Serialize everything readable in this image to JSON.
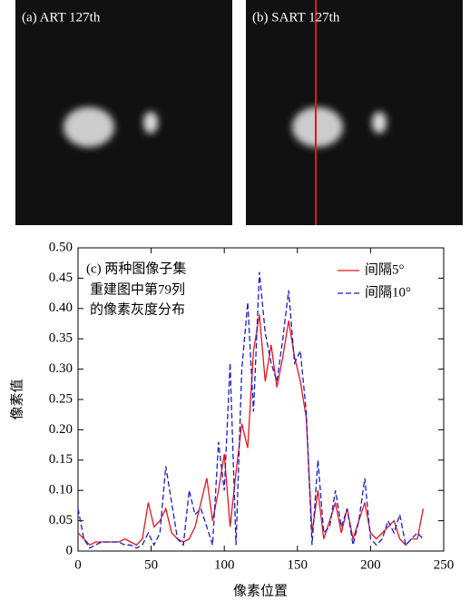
{
  "panels": [
    {
      "label": "(a) ART 127th"
    },
    {
      "label": "(b) SART 127th"
    }
  ],
  "chart_data": {
    "type": "line",
    "annotation": [
      "(c) 两种图像子集",
      "重建图中第79列",
      "的像素灰度分布"
    ],
    "xlabel": "像素位置",
    "ylabel": "像素值",
    "x": [
      0,
      4,
      8,
      12,
      16,
      20,
      24,
      28,
      32,
      36,
      40,
      44,
      48,
      52,
      56,
      60,
      64,
      68,
      72,
      76,
      80,
      84,
      88,
      92,
      96,
      100,
      104,
      108,
      112,
      116,
      120,
      124,
      128,
      132,
      136,
      140,
      144,
      148,
      152,
      156,
      160,
      164,
      168,
      172,
      176,
      180,
      184,
      188,
      192,
      196,
      200,
      204,
      208,
      212,
      216,
      220,
      224,
      228,
      232,
      236
    ],
    "series": [
      {
        "name": "间隔5°",
        "color": "#e8141c",
        "dashed": false,
        "values": [
          0.03,
          0.02,
          0.01,
          0.015,
          0.015,
          0.015,
          0.015,
          0.015,
          0.02,
          0.015,
          0.01,
          0.02,
          0.08,
          0.04,
          0.05,
          0.07,
          0.03,
          0.02,
          0.015,
          0.02,
          0.04,
          0.08,
          0.12,
          0.05,
          0.1,
          0.16,
          0.04,
          0.13,
          0.21,
          0.17,
          0.33,
          0.39,
          0.28,
          0.34,
          0.27,
          0.32,
          0.38,
          0.32,
          0.28,
          0.22,
          0.03,
          0.1,
          0.02,
          0.05,
          0.08,
          0.03,
          0.07,
          0.02,
          0.05,
          0.08,
          0.03,
          0.02,
          0.03,
          0.04,
          0.05,
          0.02,
          0.01,
          0.02,
          0.02,
          0.07
        ]
      },
      {
        "name": "间隔10°",
        "color": "#1c1cd0",
        "dashed": true,
        "values": [
          0.07,
          0.02,
          0.005,
          0.01,
          0.015,
          0.015,
          0.015,
          0.015,
          0.01,
          0.01,
          0.005,
          0.01,
          0.03,
          0.01,
          0.03,
          0.14,
          0.08,
          0.02,
          0.01,
          0.1,
          0.06,
          0.07,
          0.04,
          0.01,
          0.18,
          0.1,
          0.31,
          0.01,
          0.3,
          0.41,
          0.23,
          0.46,
          0.36,
          0.31,
          0.28,
          0.35,
          0.43,
          0.31,
          0.33,
          0.23,
          0.01,
          0.15,
          0.03,
          0.04,
          0.1,
          0.04,
          0.07,
          0.01,
          0.05,
          0.12,
          0.02,
          0.01,
          0.02,
          0.05,
          0.03,
          0.06,
          0.01,
          0.02,
          0.03,
          0.02
        ]
      }
    ],
    "xlim": [
      0,
      250
    ],
    "xticks": [
      0,
      50,
      100,
      150,
      200,
      250
    ],
    "ylim": [
      0,
      0.5
    ],
    "yticks": [
      0,
      0.05,
      {
        "value": 0.1,
        "label": "0.10"
      },
      0.15,
      {
        "value": 0.2,
        "label": "0.20"
      },
      0.25,
      {
        "value": 0.3,
        "label": "0.30"
      },
      0.35,
      {
        "value": 0.4,
        "label": "0.40"
      },
      0.45,
      {
        "value": 0.5,
        "label": "0.50"
      }
    ],
    "legend": "upper right"
  }
}
